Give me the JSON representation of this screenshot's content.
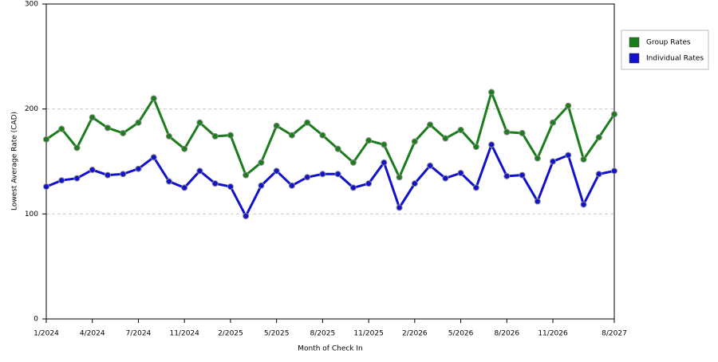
{
  "chart_data": {
    "type": "line",
    "x_label": "Month of Check In",
    "y_label": "Lowest Average Rate (CAD)",
    "categories": [
      "1/2024",
      null,
      null,
      "4/2024",
      null,
      null,
      "7/2024",
      null,
      null,
      "11/2024",
      null,
      null,
      "2/2025",
      null,
      null,
      "5/2025",
      null,
      null,
      "8/2025",
      null,
      null,
      "11/2025",
      null,
      null,
      "2/2026",
      null,
      null,
      "5/2026",
      null,
      null,
      "8/2026",
      null,
      null,
      "11/2026",
      null,
      null,
      null,
      "8/2027"
    ],
    "series": [
      {
        "name": "Group Rates",
        "color": "#1b7d1b",
        "values": [
          171,
          181,
          163,
          192,
          182,
          177,
          187,
          210,
          174,
          162,
          187,
          174,
          175,
          137,
          149,
          184,
          175,
          187,
          175,
          162,
          149,
          170,
          166,
          135,
          169,
          185,
          172,
          180,
          164,
          216,
          178,
          177,
          153,
          187,
          203,
          152,
          173,
          195
        ]
      },
      {
        "name": "Individual Rates",
        "color": "#1212cc",
        "values": [
          126,
          132,
          134,
          142,
          137,
          138,
          143,
          154,
          131,
          125,
          141,
          129,
          126,
          98,
          127,
          141,
          127,
          135,
          138,
          138,
          125,
          129,
          149,
          106,
          129,
          146,
          134,
          139,
          125,
          166,
          136,
          137,
          112,
          150,
          156,
          109,
          138,
          141
        ]
      }
    ],
    "ylim": [
      0,
      300
    ],
    "yticks": [
      0,
      100,
      200,
      300
    ],
    "grid": true,
    "legend": "right"
  }
}
